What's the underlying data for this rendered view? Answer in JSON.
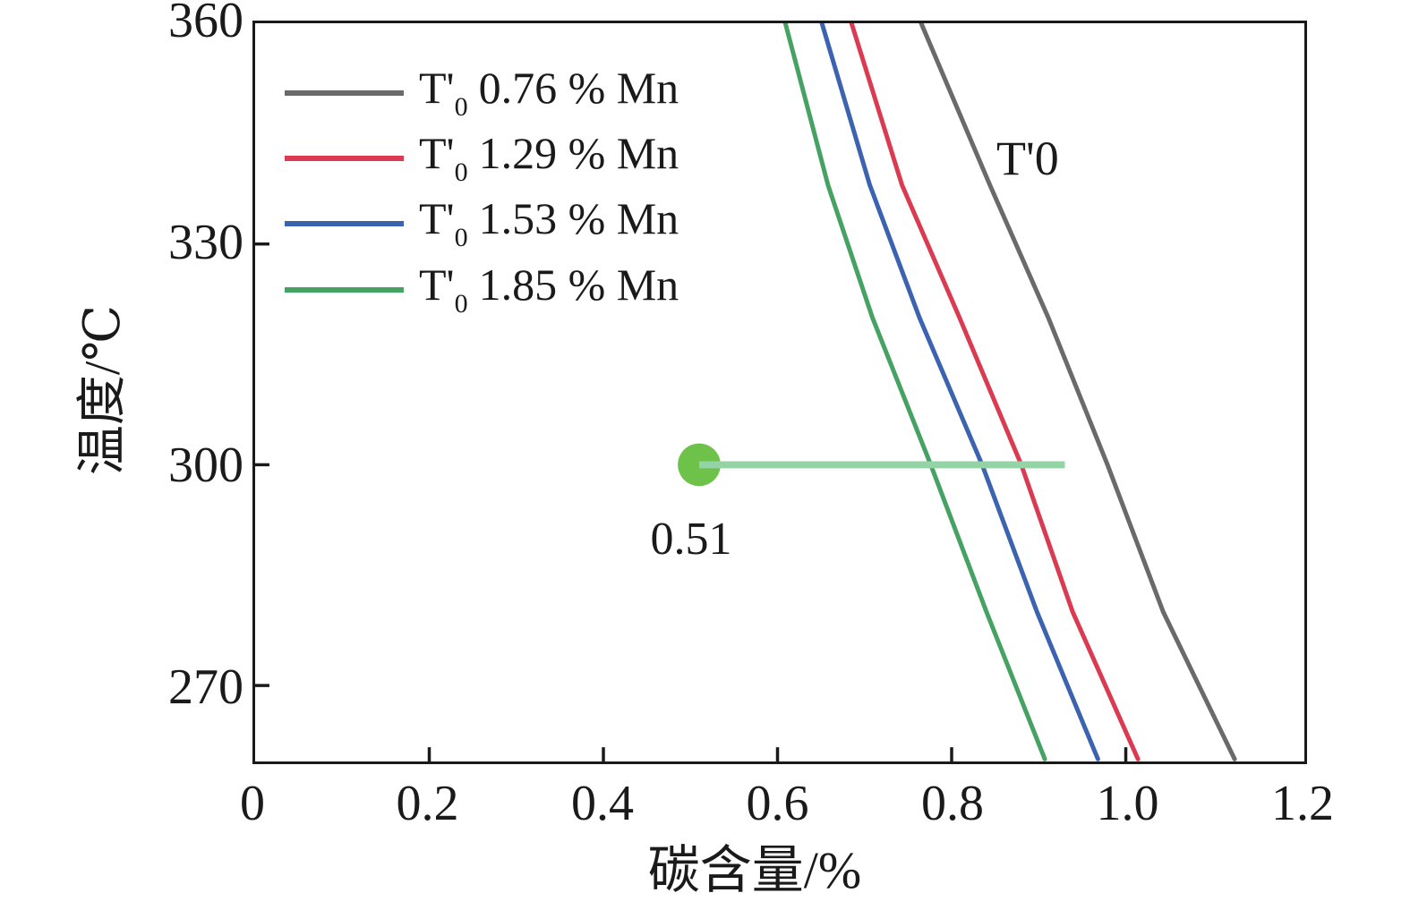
{
  "chart_data": {
    "type": "line",
    "title": "",
    "xlabel": "碳含量/%",
    "ylabel": "温度/℃",
    "xlim": [
      0,
      1.205
    ],
    "ylim": [
      260,
      360
    ],
    "grid": false,
    "legend_position": "upper-left-inside",
    "xticks": {
      "values": [
        0,
        0.2,
        0.4,
        0.6,
        0.8,
        1.0,
        1.2
      ],
      "labels": [
        "0",
        "0.2",
        "0.4",
        "0.6",
        "0.8",
        "1.0",
        "1.2"
      ]
    },
    "yticks": {
      "values": [
        270,
        300,
        330,
        360
      ],
      "labels": [
        "270",
        "300",
        "330",
        "360"
      ]
    },
    "temperatures_sampled": [
      360,
      338,
      320,
      300,
      280,
      260
    ],
    "series": [
      {
        "name": "T'0 0.76 % Mn",
        "mn_percent": 0.76,
        "color": "#6a6a6a",
        "carbon": [
          0.765,
          0.844,
          0.911,
          0.979,
          1.043,
          1.125
        ]
      },
      {
        "name": "T'0 1.29 % Mn",
        "mn_percent": 1.29,
        "color": "#da3b51",
        "carbon": [
          0.685,
          0.743,
          0.809,
          0.88,
          0.939,
          1.014
        ]
      },
      {
        "name": "T'0 1.53 % Mn",
        "mn_percent": 1.53,
        "color": "#3c63af",
        "carbon": [
          0.651,
          0.706,
          0.763,
          0.835,
          0.898,
          0.968
        ]
      },
      {
        "name": "T'0 1.85 % Mn",
        "mn_percent": 1.85,
        "color": "#45a262",
        "carbon": [
          0.609,
          0.658,
          0.709,
          0.776,
          0.84,
          0.907
        ]
      }
    ],
    "annotations": {
      "curve_label": "T'0",
      "marker": {
        "carbon": 0.51,
        "temperature": 300,
        "label": "0.51",
        "color": "#6ec24a",
        "radius_px": 24
      },
      "hline": {
        "temperature": 300,
        "carbon_start": 0.51,
        "carbon_end": 0.93,
        "color": "#93d3a6"
      }
    },
    "axis_color": "#1a1a1a"
  },
  "legend": {
    "items": [
      {
        "prefix": "T'",
        "sub": "0",
        "label": "0.76 % Mn"
      },
      {
        "prefix": "T'",
        "sub": "0",
        "label": "1.29 % Mn"
      },
      {
        "prefix": "T'",
        "sub": "0",
        "label": "1.53 % Mn"
      },
      {
        "prefix": "T'",
        "sub": "0",
        "label": "1.85 % Mn"
      }
    ]
  }
}
